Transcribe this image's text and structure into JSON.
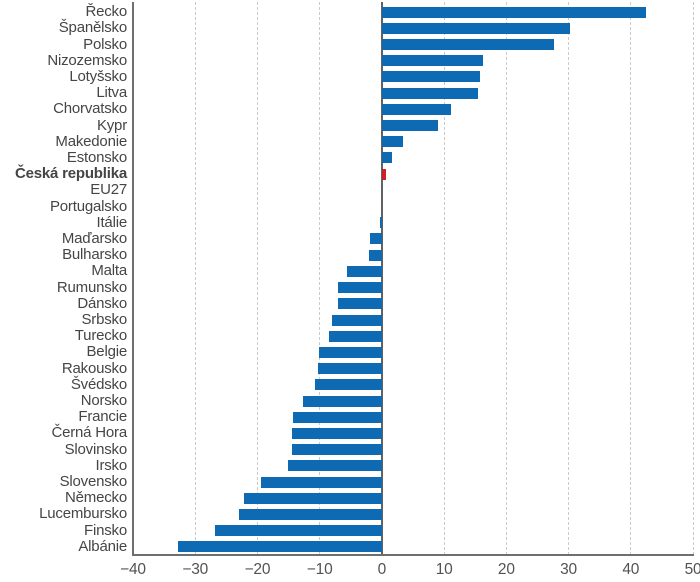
{
  "chart_data": {
    "type": "bar",
    "orientation": "horizontal",
    "title": "",
    "xlabel": "",
    "ylabel": "",
    "xlim": [
      -40,
      50
    ],
    "x_ticks": [
      -40,
      -30,
      -20,
      -10,
      0,
      10,
      20,
      30,
      40,
      50
    ],
    "x_tick_labels": [
      "−40",
      "−30",
      "−20",
      "−10",
      "0",
      "10",
      "20",
      "30",
      "40",
      "50"
    ],
    "grid": "vertical-dashed",
    "legend": "none",
    "categories": [
      "Řecko",
      "Španělsko",
      "Polsko",
      "Nizozemsko",
      "Lotyšsko",
      "Litva",
      "Chorvatsko",
      "Kypr",
      "Makedonie",
      "Estonsko",
      "Česká republika",
      "EU27",
      "Portugalsko",
      "Itálie",
      "Maďarsko",
      "Bulharsko",
      "Malta",
      "Rumunsko",
      "Dánsko",
      "Srbsko",
      "Turecko",
      "Belgie",
      "Rakousko",
      "Švédsko",
      "Norsko",
      "Francie",
      "Černá Hora",
      "Slovinsko",
      "Irsko",
      "Slovensko",
      "Německo",
      "Lucembursko",
      "Finsko",
      "Albánie"
    ],
    "values": [
      42.5,
      30.2,
      27.7,
      16.3,
      15.8,
      15.5,
      11.1,
      9.1,
      3.4,
      1.7,
      0.7,
      0.0,
      0.0,
      -0.3,
      -1.9,
      -2.1,
      -5.6,
      -7.1,
      -7.1,
      -8.0,
      -8.5,
      -10.1,
      -10.2,
      -10.7,
      -12.7,
      -14.3,
      -14.4,
      -14.4,
      -15.1,
      -19.4,
      -22.2,
      -22.9,
      -26.8,
      -32.7
    ],
    "highlight_category": "Česká republika",
    "highlight_index": 10,
    "colors": {
      "bar": "#0d6ab3",
      "highlight_bar": "#cd2127",
      "gridline": "#c9cacb",
      "axis": "#6e6f71",
      "label_text": "#454547",
      "tick_text": "#515254"
    }
  }
}
